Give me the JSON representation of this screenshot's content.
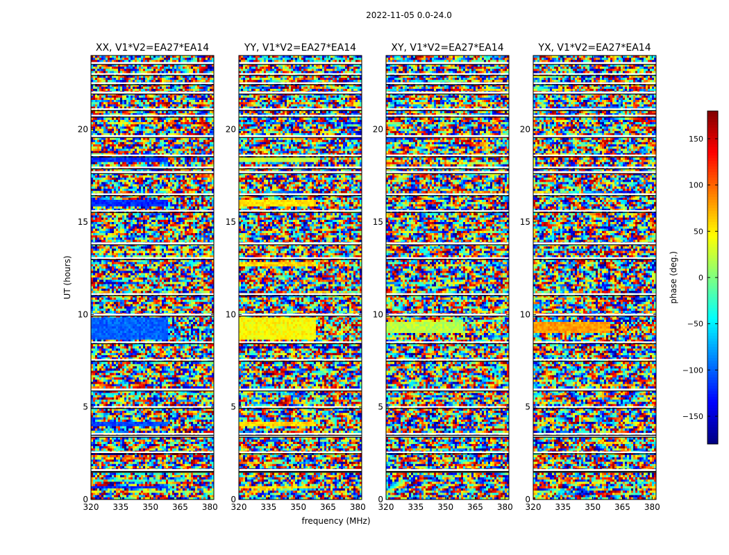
{
  "chart_data": {
    "type": "heatmap",
    "suptitle": "2022-11-05 0.0-24.0",
    "xlabel": "frequency (MHz)",
    "ylabel": "UT (hours)",
    "colorbar_label": "phase (deg.)",
    "x_range": [
      320,
      382
    ],
    "y_range": [
      0,
      24
    ],
    "x_ticks": [
      320,
      335,
      350,
      365,
      380
    ],
    "y_ticks": [
      0,
      5,
      10,
      15,
      20
    ],
    "colorbar_range": [
      -180,
      180
    ],
    "colorbar_ticks": [
      150,
      100,
      50,
      0,
      -50,
      -100,
      -150
    ],
    "colormap": "jet",
    "panels": [
      {
        "title": "XX, V1*V2=EA27*EA14",
        "coherent_bands": [
          [
            0.55,
            0.75,
            -120
          ],
          [
            3.9,
            4.15,
            -110
          ],
          [
            8.6,
            9.8,
            -100
          ],
          [
            15.85,
            16.15,
            -120
          ],
          [
            18.2,
            18.45,
            -120
          ]
        ]
      },
      {
        "title": "YY, V1*V2=EA27*EA14",
        "coherent_bands": [
          [
            0.55,
            0.75,
            60
          ],
          [
            3.9,
            4.15,
            60
          ],
          [
            8.6,
            9.8,
            45
          ],
          [
            15.85,
            16.15,
            55
          ],
          [
            18.2,
            18.45,
            25
          ],
          [
            12.6,
            12.9,
            60
          ]
        ]
      },
      {
        "title": "XY, V1*V2=EA27*EA14",
        "coherent_bands": [
          [
            9.0,
            9.6,
            20
          ]
        ]
      },
      {
        "title": "YX, V1*V2=EA27*EA14",
        "coherent_bands": [
          [
            9.0,
            9.6,
            80
          ]
        ]
      }
    ],
    "gap_hours": [
      1.55,
      1.6,
      2.55,
      3.45,
      3.55,
      5.0,
      5.95,
      7.55,
      8.5,
      10.0,
      11.1,
      13.05,
      13.85,
      15.6,
      16.5,
      17.7,
      17.95,
      18.6,
      19.65,
      20.75,
      21.1,
      22.0,
      22.5,
      23.0,
      23.6
    ]
  }
}
